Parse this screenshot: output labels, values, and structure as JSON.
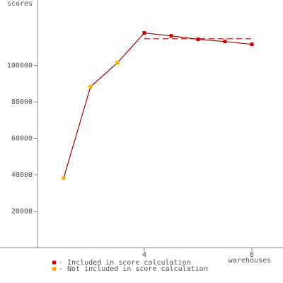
{
  "chart_data": {
    "type": "line",
    "y_label": "scores",
    "x_label": "warehouses",
    "x": [
      1,
      2,
      3,
      4,
      5,
      6,
      7,
      8
    ],
    "series": [
      {
        "name": "- Included in score calculation",
        "color": "#cc0000",
        "values": [
          null,
          null,
          null,
          117900,
          116300,
          114400,
          113200,
          111650
        ]
      },
      {
        "name": "- Not included in score calculation",
        "color": "#ffaa00",
        "values": [
          38250,
          88350,
          101550,
          null,
          null,
          null,
          null,
          null
        ]
      }
    ],
    "line_color": "#aa0000",
    "reference_line": {
      "value": 114700,
      "x": [
        4,
        8
      ],
      "color": "#aa0000"
    },
    "xlim": [
      0,
      9.16
    ],
    "ylim": [
      0,
      136000
    ],
    "xticks": [
      4,
      8
    ],
    "yticks": [
      20000,
      40000,
      60000,
      80000,
      100000
    ],
    "grid": false
  }
}
